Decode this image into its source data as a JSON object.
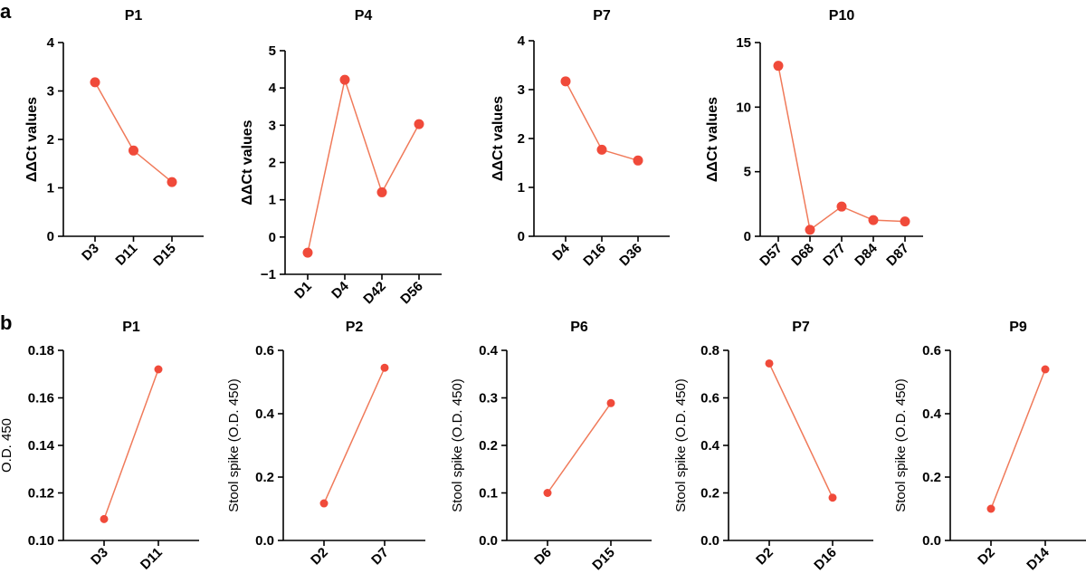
{
  "panel_labels": [
    "a",
    "b"
  ],
  "colors": {
    "series": "#f04a3a",
    "line": "#f07a5a",
    "axis": "#000000"
  },
  "chart_data": [
    {
      "panel": "a",
      "type": "line",
      "title": "P1",
      "ylabel": "ΔΔCt values",
      "categories": [
        "D3",
        "D11",
        "D15"
      ],
      "values": [
        3.18,
        1.77,
        1.12
      ],
      "ylim": [
        0,
        4
      ],
      "yticks": [
        "0",
        "1",
        "2",
        "3",
        "4"
      ]
    },
    {
      "panel": "a",
      "type": "line",
      "title": "P4",
      "ylabel": "ΔΔCt values",
      "categories": [
        "D1",
        "D4",
        "D42",
        "D56"
      ],
      "values": [
        -0.42,
        4.22,
        1.2,
        3.03
      ],
      "ylim": [
        -1,
        5
      ],
      "yticks": [
        "−1",
        "0",
        "1",
        "2",
        "3",
        "4",
        "5"
      ]
    },
    {
      "panel": "a",
      "type": "line",
      "title": "P7",
      "ylabel": "ΔΔCt values",
      "categories": [
        "D4",
        "D16",
        "D36"
      ],
      "values": [
        3.17,
        1.77,
        1.55
      ],
      "ylim": [
        0,
        4
      ],
      "yticks": [
        "0",
        "1",
        "2",
        "3",
        "4"
      ]
    },
    {
      "panel": "a",
      "type": "line",
      "title": "P10",
      "ylabel": "ΔΔCt values",
      "categories": [
        "D57",
        "D68",
        "D77",
        "D84",
        "D87"
      ],
      "values": [
        13.2,
        0.5,
        2.3,
        1.25,
        1.15
      ],
      "ylim": [
        0,
        15
      ],
      "yticks": [
        "0",
        "5",
        "10",
        "15"
      ]
    },
    {
      "panel": "b",
      "type": "line",
      "title": "P1",
      "ylabel": "O.D. 450",
      "categories": [
        "D3",
        "D11"
      ],
      "values": [
        0.109,
        0.172
      ],
      "ylim": [
        0.1,
        0.18
      ],
      "yticks": [
        "0.10",
        "0.12",
        "0.14",
        "0.16",
        "0.18"
      ]
    },
    {
      "panel": "b",
      "type": "line",
      "title": "P2",
      "ylabel": "Stool spike (O.D. 450)",
      "categories": [
        "D2",
        "D7"
      ],
      "values": [
        0.117,
        0.545
      ],
      "ylim": [
        0,
        0.6
      ],
      "yticks": [
        "0.0",
        "0.2",
        "0.4",
        "0.6"
      ]
    },
    {
      "panel": "b",
      "type": "line",
      "title": "P6",
      "ylabel": "Stool spike (O.D. 450)",
      "categories": [
        "D6",
        "D15"
      ],
      "values": [
        0.1,
        0.289
      ],
      "ylim": [
        0,
        0.4
      ],
      "yticks": [
        "0.0",
        "0.1",
        "0.2",
        "0.3",
        "0.4"
      ]
    },
    {
      "panel": "b",
      "type": "line",
      "title": "P7",
      "ylabel": "Stool spike (O.D. 450)",
      "categories": [
        "D2",
        "D16"
      ],
      "values": [
        0.745,
        0.18
      ],
      "ylim": [
        0,
        0.8
      ],
      "yticks": [
        "0.0",
        "0.2",
        "0.4",
        "0.6",
        "0.8"
      ]
    },
    {
      "panel": "b",
      "type": "line",
      "title": "P9",
      "ylabel": "Stool spike (O.D. 450)",
      "categories": [
        "D2",
        "D14"
      ],
      "values": [
        0.1,
        0.54
      ],
      "ylim": [
        0,
        0.6
      ],
      "yticks": [
        "0.0",
        "0.2",
        "0.4",
        "0.6"
      ]
    }
  ]
}
